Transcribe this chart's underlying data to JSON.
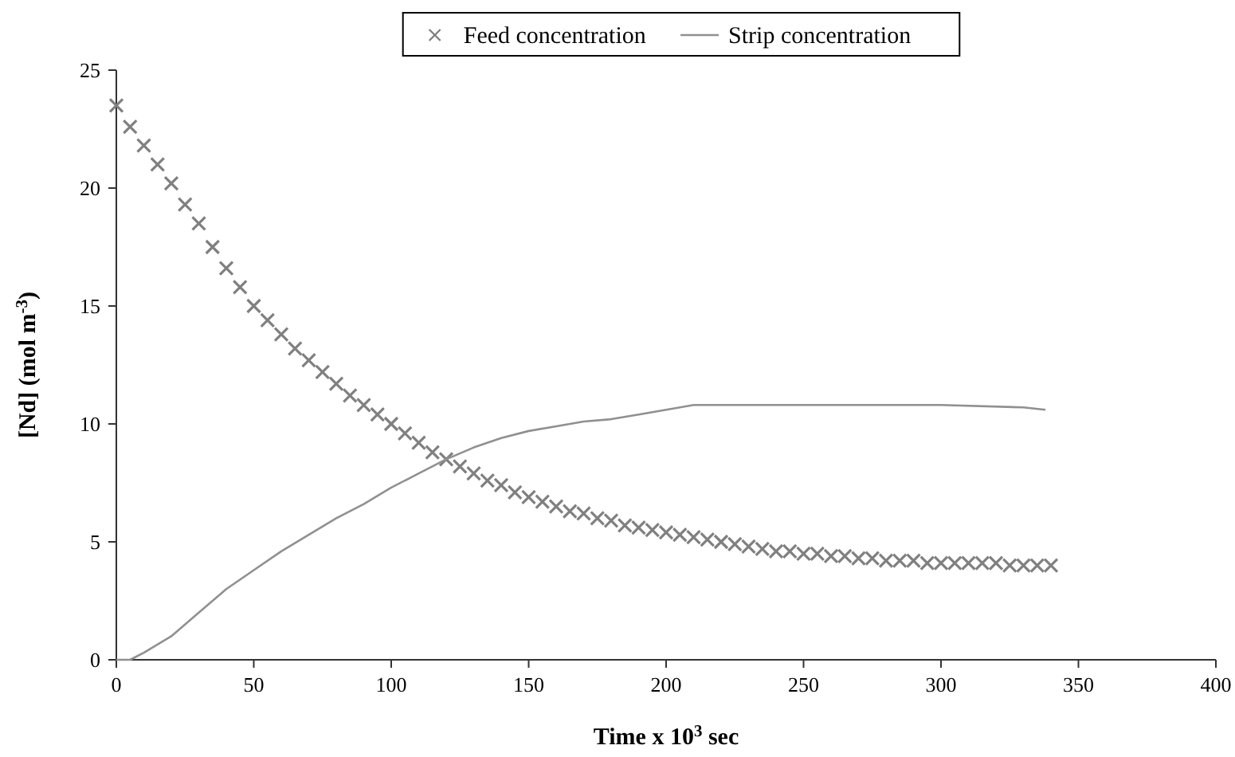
{
  "chart_data": {
    "type": "scatter",
    "xlabel": "Time x 10$^{3}$ sec",
    "ylabel": "[Nd] (mol m$^{-3}$)",
    "xlim": [
      0,
      400
    ],
    "ylim": [
      0,
      25
    ],
    "xticks": [
      0,
      50,
      100,
      150,
      200,
      250,
      300,
      350,
      400
    ],
    "yticks": [
      0,
      5,
      10,
      15,
      20,
      25
    ],
    "grid": false,
    "legend": "top",
    "series": [
      {
        "name": "Feed concentration",
        "marker": "cross",
        "color": "#808080",
        "x": [
          0,
          5,
          10,
          15,
          20,
          25,
          30,
          35,
          40,
          45,
          50,
          55,
          60,
          65,
          70,
          75,
          80,
          85,
          90,
          95,
          100,
          105,
          110,
          115,
          120,
          125,
          130,
          135,
          140,
          145,
          150,
          155,
          160,
          165,
          170,
          175,
          180,
          185,
          190,
          195,
          200,
          205,
          210,
          215,
          220,
          225,
          230,
          235,
          240,
          245,
          250,
          255,
          260,
          265,
          270,
          275,
          280,
          285,
          290,
          295,
          300,
          305,
          310,
          315,
          320,
          325,
          330,
          335,
          340
        ],
        "values": [
          23.5,
          22.6,
          21.8,
          21.0,
          20.2,
          19.3,
          18.5,
          17.5,
          16.6,
          15.8,
          15.0,
          14.4,
          13.8,
          13.2,
          12.7,
          12.2,
          11.7,
          11.2,
          10.8,
          10.4,
          10.0,
          9.6,
          9.2,
          8.8,
          8.5,
          8.2,
          7.9,
          7.6,
          7.4,
          7.1,
          6.9,
          6.7,
          6.5,
          6.3,
          6.2,
          6.0,
          5.9,
          5.7,
          5.6,
          5.5,
          5.4,
          5.3,
          5.2,
          5.1,
          5.0,
          4.9,
          4.8,
          4.7,
          4.6,
          4.6,
          4.5,
          4.5,
          4.4,
          4.4,
          4.3,
          4.3,
          4.2,
          4.2,
          4.2,
          4.1,
          4.1,
          4.1,
          4.1,
          4.1,
          4.1,
          4.0,
          4.0,
          4.0,
          4.0
        ]
      },
      {
        "name": "Strip concentration",
        "type": "line",
        "marker": "none",
        "color": "#909090",
        "line_style": "solid",
        "x": [
          0,
          5,
          10,
          20,
          30,
          40,
          50,
          60,
          70,
          80,
          90,
          100,
          110,
          120,
          130,
          140,
          150,
          160,
          170,
          180,
          190,
          200,
          210,
          220,
          250,
          300,
          330,
          338
        ],
        "values": [
          0,
          0,
          0.3,
          1.0,
          2.0,
          3.0,
          3.8,
          4.6,
          5.3,
          6.0,
          6.6,
          7.3,
          7.9,
          8.5,
          9.0,
          9.4,
          9.7,
          9.9,
          10.1,
          10.2,
          10.4,
          10.6,
          10.8,
          10.8,
          10.8,
          10.8,
          10.7,
          10.6
        ]
      }
    ]
  }
}
